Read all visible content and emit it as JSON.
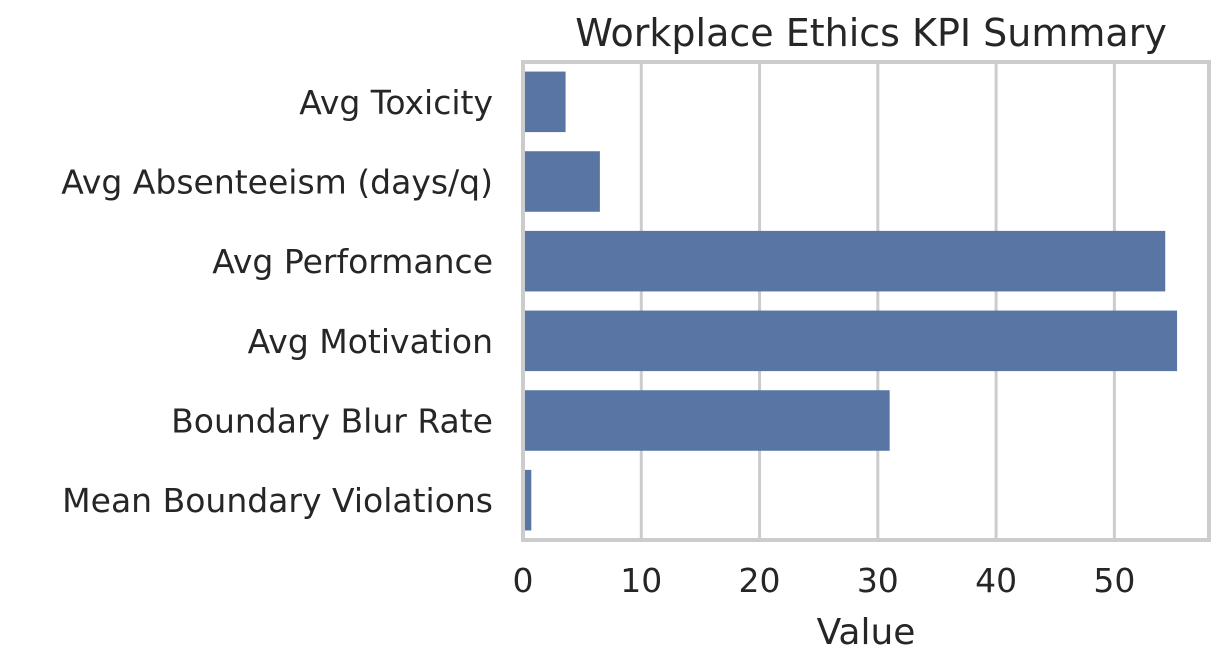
{
  "chart_data": {
    "type": "bar",
    "orientation": "horizontal",
    "title": "Workplace Ethics KPI Summary",
    "xlabel": "Value",
    "ylabel": "",
    "categories": [
      "Avg Toxicity",
      "Avg Absenteeism (days/q)",
      "Avg Performance",
      "Avg Motivation",
      "Boundary Blur Rate",
      "Mean Boundary Violations"
    ],
    "values": [
      3.6,
      6.5,
      54.3,
      55.3,
      31.0,
      0.7
    ],
    "xlim": [
      0,
      58
    ],
    "xticks": [
      0,
      10,
      20,
      30,
      40,
      50
    ],
    "grid": true,
    "bar_color": "#5975a4",
    "grid_color": "#cccccc",
    "frame_color": "#cccccc"
  }
}
